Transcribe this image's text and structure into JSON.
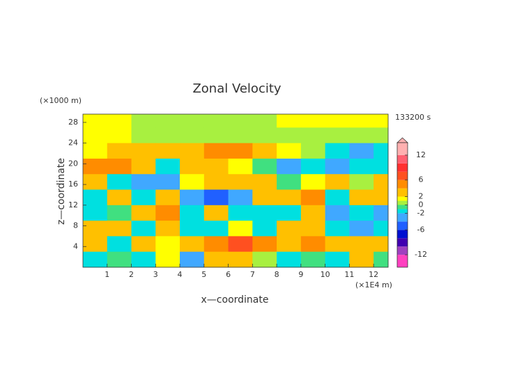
{
  "chart_data": {
    "type": "heatmap",
    "title": "Zonal Velocity",
    "x_label": "x—coordinate",
    "y_label": "z—coordinate",
    "x_unit": "(×1E4 m)",
    "y_unit": "(×1000 m)",
    "time_label": "133200 s",
    "xlim": [
      0,
      12.6
    ],
    "ylim": [
      0,
      29.6
    ],
    "xticks": [
      1,
      2,
      3,
      4,
      5,
      6,
      7,
      8,
      9,
      10,
      11,
      12
    ],
    "yticks": [
      4,
      8,
      12,
      16,
      20,
      24,
      28
    ],
    "x_edges": [
      0,
      1,
      2,
      3,
      4,
      5,
      6,
      7,
      8,
      9,
      10,
      11,
      12,
      12.6
    ],
    "y_edges": [
      29.6,
      27,
      24,
      21,
      18,
      15,
      12,
      9,
      6,
      3,
      0
    ],
    "z": [
      [
        1.5,
        1.5,
        0.5,
        0.5,
        0.5,
        0.5,
        0.5,
        0.5,
        1.5,
        1.5,
        1.5,
        1.5,
        1.5
      ],
      [
        1.5,
        1,
        0.5,
        0.5,
        0.5,
        0.5,
        0.5,
        0.5,
        0.5,
        0.5,
        0.5,
        0.5,
        0.5
      ],
      [
        1.5,
        3,
        3,
        2.5,
        3,
        4.5,
        4,
        3,
        1.5,
        0.5,
        -1.5,
        -3,
        -2
      ],
      [
        4,
        5,
        3,
        -1.5,
        3,
        2.5,
        1.5,
        -1,
        -3,
        -1.5,
        -3,
        -2,
        -1.5
      ],
      [
        3,
        -1.5,
        -3,
        -4,
        1.5,
        3,
        2.5,
        3.5,
        -1,
        1.5,
        3,
        0.5,
        2.5
      ],
      [
        -1.5,
        2.5,
        -2,
        2.5,
        -3,
        -6,
        -3,
        3,
        3.5,
        4.5,
        -1.5,
        3,
        2.5
      ],
      [
        -1.5,
        -0.5,
        3,
        4,
        -1.5,
        3,
        -1.5,
        -1.5,
        -1.5,
        3,
        -3,
        -2,
        -3
      ],
      [
        3,
        2.5,
        -1.5,
        2.5,
        -2,
        -1.5,
        1.5,
        -1.5,
        2.5,
        3,
        -1.5,
        -3,
        -1.5
      ],
      [
        2.5,
        -1.5,
        2.5,
        1.5,
        3,
        5,
        6.5,
        4,
        3,
        4,
        3,
        2.5,
        3
      ],
      [
        -1.5,
        -1,
        -1.5,
        1.5,
        -3,
        2,
        2.5,
        0.5,
        -1.5,
        -1,
        -1.5,
        2,
        -1
      ]
    ],
    "levels": [
      -15,
      -12,
      -10,
      -8,
      -6,
      -4,
      -2,
      -1,
      0,
      1,
      2,
      4,
      6,
      8,
      10,
      12,
      15
    ],
    "colors": [
      "#ff40c0",
      "#a040c0",
      "#4000b0",
      "#0010d0",
      "#2060ff",
      "#40a8ff",
      "#00e0e0",
      "#40e080",
      "#a8f040",
      "#ffff00",
      "#ffc000",
      "#ff8c00",
      "#ff5020",
      "#ff3030",
      "#ff6070",
      "#ffb0b0"
    ],
    "cticks": [
      12,
      6,
      2,
      0,
      -2,
      -6,
      -12
    ]
  }
}
